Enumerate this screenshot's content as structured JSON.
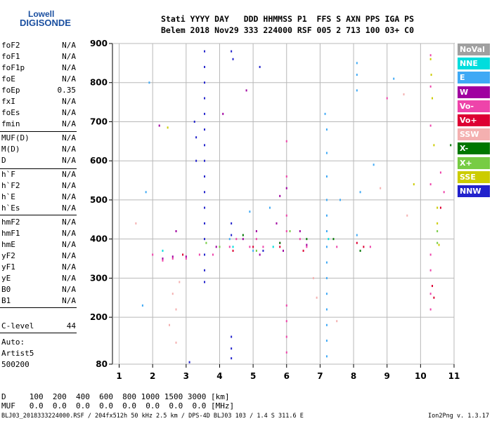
{
  "logo": {
    "top": "Lowell",
    "bottom": "DIGISONDE"
  },
  "header": {
    "line1": "Stati YYYY DAY   DDD HHMMSS P1  FFS S AXN PPS IGA PS",
    "line2": "Belem 2018 Nov29 333 224000 RSF 005 2 713 100 03+ C0"
  },
  "params": [
    {
      "name": "foF2",
      "value": "N/A"
    },
    {
      "name": "foF1",
      "value": "N/A"
    },
    {
      "name": "foF1p",
      "value": "N/A"
    },
    {
      "name": "foE",
      "value": "N/A"
    },
    {
      "name": "foEp",
      "value": "0.35"
    },
    {
      "name": "fxI",
      "value": "N/A"
    },
    {
      "name": "foEs",
      "value": "N/A"
    },
    {
      "name": "fmin",
      "value": "N/A"
    },
    {
      "name": "MUF(D)",
      "value": "N/A"
    },
    {
      "name": "M(D)",
      "value": "N/A"
    },
    {
      "name": "D",
      "value": "N/A"
    },
    {
      "name": "h`F",
      "value": "N/A"
    },
    {
      "name": "h`F2",
      "value": "N/A"
    },
    {
      "name": "h`E",
      "value": "N/A"
    },
    {
      "name": "h`Es",
      "value": "N/A"
    },
    {
      "name": "hmF2",
      "value": "N/A"
    },
    {
      "name": "hmF1",
      "value": "N/A"
    },
    {
      "name": "hmE",
      "value": "N/A"
    },
    {
      "name": "yF2",
      "value": "N/A"
    },
    {
      "name": "yF1",
      "value": "N/A"
    },
    {
      "name": "yE",
      "value": "N/A"
    },
    {
      "name": "B0",
      "value": "N/A"
    },
    {
      "name": "B1",
      "value": "N/A"
    },
    {
      "name": "C-level",
      "value": "44"
    }
  ],
  "auto": {
    "line1": "Auto:",
    "line2": "Artist5",
    "line3": "500200"
  },
  "footer": {
    "d_line": "D     100  200  400  600  800 1000 1500 3000 [km]",
    "muf_line": "MUF   0.0  0.0  0.0  0.0  0.0  0.0  0.0  0.0 [MHz]"
  },
  "status": {
    "left": "BLJ03_2018333224000.RSF / 204fx512h 50 kHz 2.5 km / DPS-4D BLJ03 103 / 1.4 S 311.6 E",
    "right": "Ion2Png v. 1.3.17"
  },
  "legend": [
    {
      "label": "NoVal",
      "color": "#a0a0a0"
    },
    {
      "label": "NNE",
      "color": "#00dddd"
    },
    {
      "label": "E",
      "color": "#3fa9f5"
    },
    {
      "label": "W",
      "color": "#a000a0"
    },
    {
      "label": "Vo-",
      "color": "#ee44aa"
    },
    {
      "label": "Vo+",
      "color": "#dd0033"
    },
    {
      "label": "SSW",
      "color": "#f4b0b0"
    },
    {
      "label": "X-",
      "color": "#007700"
    },
    {
      "label": "X+",
      "color": "#77cc44"
    },
    {
      "label": "SSE",
      "color": "#cccc00"
    },
    {
      "label": "NNW",
      "color": "#2222cc"
    }
  ],
  "chart_data": {
    "type": "scatter",
    "title": "",
    "xlabel": "",
    "ylabel": "",
    "xlim": [
      0.8,
      11
    ],
    "ylim": [
      80,
      900
    ],
    "xticks": [
      1,
      2,
      3,
      4,
      5,
      6,
      7,
      8,
      9,
      10,
      11
    ],
    "yticks": [
      80,
      200,
      300,
      400,
      500,
      600,
      700,
      800,
      900
    ],
    "grid": true,
    "series": [
      {
        "name": "NNW",
        "color": "#2222cc",
        "points": [
          [
            3.55,
            880
          ],
          [
            3.55,
            840
          ],
          [
            3.55,
            800
          ],
          [
            3.55,
            760
          ],
          [
            3.55,
            720
          ],
          [
            3.55,
            680
          ],
          [
            3.55,
            640
          ],
          [
            3.55,
            600
          ],
          [
            3.55,
            560
          ],
          [
            3.55,
            520
          ],
          [
            3.55,
            480
          ],
          [
            3.55,
            440
          ],
          [
            3.55,
            400
          ],
          [
            3.55,
            360
          ],
          [
            3.55,
            320
          ],
          [
            3.55,
            290
          ],
          [
            3.25,
            700
          ],
          [
            3.3,
            660
          ],
          [
            3.3,
            600
          ],
          [
            4.35,
            880
          ],
          [
            4.4,
            860
          ],
          [
            4.35,
            440
          ],
          [
            4.35,
            410
          ],
          [
            4.35,
            150
          ],
          [
            4.35,
            120
          ],
          [
            4.35,
            95
          ],
          [
            3.1,
            85
          ],
          [
            5.2,
            840
          ],
          [
            5.3,
            370
          ]
        ]
      },
      {
        "name": "W",
        "color": "#a000a0",
        "points": [
          [
            2.3,
            350
          ],
          [
            2.6,
            355
          ],
          [
            3.0,
            355
          ],
          [
            3.9,
            380
          ],
          [
            4.7,
            400
          ],
          [
            5.1,
            420
          ],
          [
            5.2,
            360
          ],
          [
            5.7,
            440
          ],
          [
            5.8,
            510
          ],
          [
            5.9,
            370
          ],
          [
            6.0,
            530
          ],
          [
            6.4,
            420
          ],
          [
            6.6,
            385
          ],
          [
            2.7,
            420
          ],
          [
            4.1,
            720
          ],
          [
            4.8,
            780
          ],
          [
            2.2,
            690
          ]
        ]
      },
      {
        "name": "Vo-",
        "color": "#ee44aa",
        "points": [
          [
            2.0,
            360
          ],
          [
            2.3,
            345
          ],
          [
            2.6,
            350
          ],
          [
            3.0,
            350
          ],
          [
            3.4,
            360
          ],
          [
            3.8,
            360
          ],
          [
            4.3,
            380
          ],
          [
            4.5,
            400
          ],
          [
            4.9,
            380
          ],
          [
            5.1,
            400
          ],
          [
            5.3,
            380
          ],
          [
            5.8,
            390
          ],
          [
            6.0,
            650
          ],
          [
            6.0,
            560
          ],
          [
            6.0,
            460
          ],
          [
            6.0,
            420
          ],
          [
            6.0,
            230
          ],
          [
            6.0,
            190
          ],
          [
            6.0,
            150
          ],
          [
            6.0,
            110
          ],
          [
            6.4,
            400
          ],
          [
            6.6,
            380
          ],
          [
            7.5,
            380
          ],
          [
            8.5,
            380
          ],
          [
            10.3,
            870
          ],
          [
            10.3,
            790
          ],
          [
            10.3,
            690
          ],
          [
            10.3,
            540
          ],
          [
            10.3,
            360
          ],
          [
            10.3,
            320
          ],
          [
            10.3,
            260
          ],
          [
            10.3,
            220
          ],
          [
            10.6,
            570
          ],
          [
            10.7,
            520
          ],
          [
            9.0,
            760
          ]
        ]
      },
      {
        "name": "Vo+",
        "color": "#dd0033",
        "points": [
          [
            4.4,
            370
          ],
          [
            5.0,
            380
          ],
          [
            5.8,
            380
          ],
          [
            6.5,
            370
          ],
          [
            2.9,
            360
          ],
          [
            10.35,
            280
          ],
          [
            10.4,
            250
          ],
          [
            10.6,
            480
          ],
          [
            8.1,
            390
          ],
          [
            8.3,
            380
          ]
        ]
      },
      {
        "name": "E",
        "color": "#3fa9f5",
        "points": [
          [
            7.2,
            680
          ],
          [
            7.2,
            620
          ],
          [
            7.2,
            560
          ],
          [
            7.2,
            500
          ],
          [
            7.2,
            460
          ],
          [
            7.2,
            420
          ],
          [
            7.2,
            380
          ],
          [
            7.2,
            340
          ],
          [
            7.2,
            300
          ],
          [
            7.2,
            260
          ],
          [
            7.2,
            220
          ],
          [
            7.2,
            180
          ],
          [
            7.2,
            140
          ],
          [
            7.2,
            100
          ],
          [
            7.15,
            720
          ],
          [
            8.1,
            850
          ],
          [
            8.1,
            820
          ],
          [
            8.1,
            780
          ],
          [
            8.1,
            410
          ],
          [
            8.2,
            520
          ],
          [
            1.7,
            230
          ],
          [
            1.8,
            520
          ],
          [
            1.9,
            800
          ],
          [
            4.3,
            400
          ],
          [
            5.0,
            370
          ],
          [
            4.9,
            470
          ],
          [
            5.5,
            480
          ],
          [
            9.2,
            810
          ],
          [
            8.6,
            590
          ],
          [
            7.6,
            500
          ]
        ]
      },
      {
        "name": "SSW",
        "color": "#f4b0b0",
        "points": [
          [
            2.6,
            260
          ],
          [
            2.7,
            220
          ],
          [
            2.8,
            290
          ],
          [
            2.5,
            180
          ],
          [
            2.7,
            135
          ],
          [
            6.8,
            300
          ],
          [
            6.9,
            250
          ],
          [
            7.5,
            190
          ],
          [
            9.6,
            460
          ],
          [
            8.8,
            530
          ],
          [
            9.5,
            770
          ],
          [
            1.5,
            440
          ]
        ]
      },
      {
        "name": "X-",
        "color": "#007700",
        "points": [
          [
            7.4,
            400
          ],
          [
            8.2,
            370
          ],
          [
            5.8,
            390
          ],
          [
            4.7,
            410
          ],
          [
            10.9,
            640
          ],
          [
            6.6,
            400
          ]
        ]
      },
      {
        "name": "X+",
        "color": "#77cc44",
        "points": [
          [
            3.6,
            390
          ],
          [
            6.1,
            420
          ],
          [
            10.5,
            420
          ],
          [
            10.5,
            390
          ],
          [
            5.1,
            370
          ],
          [
            4.0,
            380
          ]
        ]
      },
      {
        "name": "SSE",
        "color": "#cccc00",
        "points": [
          [
            10.3,
            860
          ],
          [
            10.32,
            820
          ],
          [
            10.35,
            760
          ],
          [
            10.4,
            640
          ],
          [
            10.5,
            480
          ],
          [
            10.5,
            440
          ],
          [
            10.55,
            385
          ],
          [
            2.45,
            685
          ],
          [
            9.8,
            540
          ]
        ]
      },
      {
        "name": "NNE",
        "color": "#00dddd",
        "points": [
          [
            2.3,
            370
          ],
          [
            4.4,
            380
          ],
          [
            5.6,
            380
          ],
          [
            7.25,
            400
          ]
        ]
      }
    ]
  }
}
